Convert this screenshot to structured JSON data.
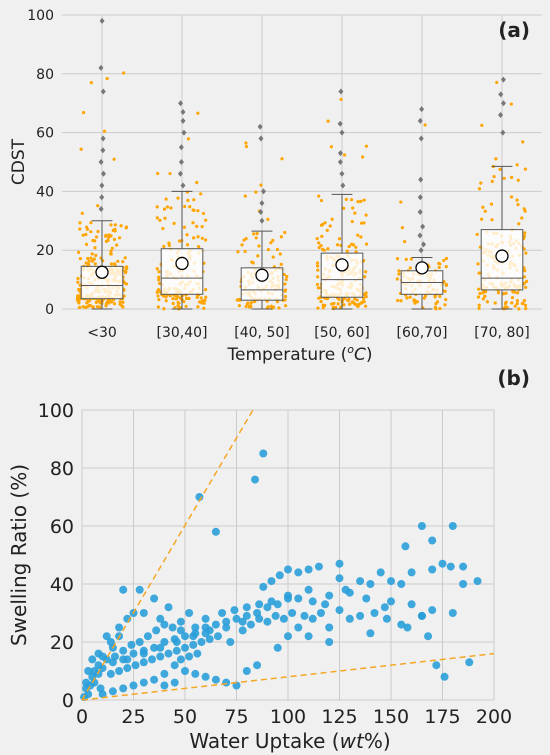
{
  "colors": {
    "background": "#f0f0f0",
    "grid": "#cbcbcb",
    "jitter": "#FFA500",
    "box_edge": "#555555",
    "box_fill": "#ffffff",
    "mean_marker_edge": "#000000",
    "flier": "#777777",
    "scatter": "#2a9fd9",
    "guide_line": "#F5A623"
  },
  "chart_data": [
    {
      "type": "box",
      "panel_label": "(a)",
      "xlabel_main": "Temperature (",
      "xlabel_unit": "o",
      "xlabel_unit2": "C",
      "xlabel_close": ")",
      "ylabel": "CDST",
      "ylim": [
        0,
        100
      ],
      "yticks": [
        0,
        20,
        40,
        60,
        80,
        100
      ],
      "grid": true,
      "categories": [
        "<30",
        "[30,40]",
        "[40, 50]",
        "[50, 60]",
        "[60,70]",
        "[70, 80]"
      ],
      "boxes": [
        {
          "whislo": 0,
          "q1": 3.5,
          "med": 8,
          "q3": 14.5,
          "whishi": 30,
          "mean": 12.5,
          "fliers": [
            34,
            38,
            42,
            46,
            50,
            54,
            58,
            74,
            82,
            98
          ]
        },
        {
          "whislo": 0,
          "q1": 5,
          "med": 10.5,
          "q3": 20.5,
          "whishi": 40,
          "mean": 15.5,
          "fliers": [
            42,
            46,
            50,
            55,
            60,
            64,
            67,
            70
          ]
        },
        {
          "whislo": 0,
          "q1": 3,
          "med": 6.5,
          "q3": 14,
          "whishi": 26.5,
          "mean": 11.5,
          "fliers": [
            30,
            33,
            36,
            40,
            58,
            62
          ]
        },
        {
          "whislo": 0,
          "q1": 4,
          "med": 10,
          "q3": 19,
          "whishi": 39,
          "mean": 15,
          "fliers": [
            42,
            46,
            50,
            53,
            60,
            63,
            74
          ]
        },
        {
          "whislo": 0,
          "q1": 5,
          "med": 9,
          "q3": 13,
          "whishi": 17.5,
          "mean": 14,
          "fliers": [
            20,
            22,
            25,
            28,
            33,
            38,
            44,
            58,
            64,
            68
          ]
        },
        {
          "whislo": 0,
          "q1": 6.5,
          "med": 10.5,
          "q3": 27,
          "whishi": 48.5,
          "mean": 18,
          "fliers": [
            60,
            66,
            70,
            73,
            78
          ]
        }
      ]
    },
    {
      "type": "scatter",
      "panel_label": "(b)",
      "xlabel_main": "Water Uptake (",
      "xlabel_unit": "wt",
      "xlabel_close": "%)",
      "ylabel": "Swelling Ratio (%)",
      "xlim": [
        0,
        200
      ],
      "ylim": [
        0,
        100
      ],
      "xticks": [
        0,
        25,
        50,
        75,
        100,
        125,
        150,
        175,
        200
      ],
      "yticks": [
        0,
        20,
        40,
        60,
        80,
        100
      ],
      "grid": true,
      "guide_lines": [
        {
          "x": [
            0,
            83
          ],
          "y": [
            0,
            100
          ]
        },
        {
          "x": [
            0,
            200
          ],
          "y": [
            0,
            16
          ]
        }
      ],
      "points": [
        [
          88,
          85
        ],
        [
          84,
          76
        ],
        [
          57,
          70
        ],
        [
          165,
          60
        ],
        [
          180,
          60
        ],
        [
          65,
          58
        ],
        [
          170,
          55
        ],
        [
          157,
          53
        ],
        [
          175,
          47
        ],
        [
          179,
          46
        ],
        [
          185,
          46
        ],
        [
          170,
          45
        ],
        [
          160,
          44
        ],
        [
          145,
          44
        ],
        [
          125,
          47
        ],
        [
          115,
          46
        ],
        [
          110,
          45
        ],
        [
          105,
          44
        ],
        [
          100,
          45
        ],
        [
          96,
          43
        ],
        [
          92,
          41
        ],
        [
          88,
          39
        ],
        [
          125,
          42
        ],
        [
          135,
          41
        ],
        [
          140,
          40
        ],
        [
          150,
          41
        ],
        [
          155,
          40
        ],
        [
          192,
          41
        ],
        [
          185,
          40
        ],
        [
          130,
          37
        ],
        [
          120,
          36
        ],
        [
          110,
          38
        ],
        [
          105,
          35
        ],
        [
          100,
          35
        ],
        [
          95,
          33
        ],
        [
          90,
          32
        ],
        [
          85,
          30
        ],
        [
          80,
          29
        ],
        [
          75,
          28
        ],
        [
          70,
          27
        ],
        [
          65,
          26
        ],
        [
          60,
          25
        ],
        [
          55,
          23
        ],
        [
          50,
          22
        ],
        [
          45,
          21
        ],
        [
          40,
          20
        ],
        [
          35,
          18
        ],
        [
          30,
          17
        ],
        [
          25,
          16
        ],
        [
          20,
          14
        ],
        [
          15,
          13
        ],
        [
          10,
          11
        ],
        [
          5,
          8
        ],
        [
          2,
          4
        ],
        [
          1,
          1
        ],
        [
          3,
          2
        ],
        [
          28,
          38
        ],
        [
          20,
          38
        ],
        [
          35,
          35
        ],
        [
          42,
          32
        ],
        [
          30,
          30
        ],
        [
          38,
          28
        ],
        [
          48,
          27
        ],
        [
          52,
          30
        ],
        [
          55,
          25
        ],
        [
          60,
          23
        ],
        [
          66,
          22
        ],
        [
          72,
          20
        ],
        [
          78,
          24
        ],
        [
          82,
          26
        ],
        [
          90,
          27
        ],
        [
          98,
          28
        ],
        [
          108,
          29
        ],
        [
          116,
          30
        ],
        [
          125,
          31
        ],
        [
          135,
          29
        ],
        [
          142,
          30
        ],
        [
          150,
          34
        ],
        [
          160,
          33
        ],
        [
          147,
          32
        ],
        [
          165,
          29
        ],
        [
          170,
          31
        ],
        [
          180,
          30
        ],
        [
          12,
          22
        ],
        [
          18,
          25
        ],
        [
          22,
          28
        ],
        [
          25,
          30
        ],
        [
          15,
          18
        ],
        [
          8,
          12
        ],
        [
          6,
          6
        ],
        [
          9,
          4
        ],
        [
          14,
          9
        ],
        [
          18,
          10
        ],
        [
          22,
          11
        ],
        [
          26,
          12
        ],
        [
          30,
          13
        ],
        [
          34,
          14
        ],
        [
          38,
          15
        ],
        [
          42,
          16
        ],
        [
          46,
          17
        ],
        [
          50,
          18
        ],
        [
          54,
          19
        ],
        [
          58,
          20
        ],
        [
          62,
          21
        ],
        [
          45,
          12
        ],
        [
          50,
          10
        ],
        [
          55,
          9
        ],
        [
          60,
          8
        ],
        [
          65,
          7
        ],
        [
          70,
          6
        ],
        [
          40,
          9
        ],
        [
          35,
          7
        ],
        [
          30,
          6
        ],
        [
          25,
          5
        ],
        [
          20,
          4
        ],
        [
          15,
          3
        ],
        [
          10,
          2
        ],
        [
          48,
          14
        ],
        [
          52,
          15
        ],
        [
          56,
          16
        ],
        [
          32,
          22
        ],
        [
          36,
          24
        ],
        [
          40,
          26
        ],
        [
          44,
          25
        ],
        [
          48,
          24
        ],
        [
          28,
          20
        ],
        [
          24,
          19
        ],
        [
          20,
          17
        ],
        [
          16,
          15
        ],
        [
          12,
          14
        ],
        [
          8,
          9
        ],
        [
          4,
          5
        ],
        [
          6,
          10
        ],
        [
          10,
          15
        ],
        [
          14,
          20
        ],
        [
          18,
          22
        ],
        [
          68,
          30
        ],
        [
          74,
          31
        ],
        [
          80,
          32
        ],
        [
          86,
          33
        ],
        [
          92,
          34
        ],
        [
          100,
          36
        ],
        [
          60,
          28
        ],
        [
          112,
          34
        ],
        [
          118,
          33
        ],
        [
          128,
          38
        ],
        [
          138,
          35
        ],
        [
          148,
          28
        ],
        [
          158,
          25
        ],
        [
          168,
          22
        ],
        [
          176,
          8
        ],
        [
          188,
          13
        ],
        [
          165,
          29
        ],
        [
          172,
          12
        ],
        [
          155,
          26
        ],
        [
          120,
          25
        ],
        [
          112,
          28
        ],
        [
          102,
          30
        ],
        [
          94,
          29
        ],
        [
          86,
          28
        ],
        [
          78,
          27
        ],
        [
          70,
          25
        ],
        [
          62,
          24
        ],
        [
          54,
          22
        ],
        [
          46,
          20
        ],
        [
          38,
          18
        ],
        [
          30,
          16
        ],
        [
          22,
          14
        ],
        [
          40,
          5
        ],
        [
          45,
          6
        ],
        [
          75,
          5
        ],
        [
          80,
          10
        ],
        [
          85,
          12
        ],
        [
          95,
          18
        ],
        [
          100,
          22
        ],
        [
          105,
          25
        ],
        [
          110,
          22
        ],
        [
          120,
          20
        ],
        [
          130,
          28
        ],
        [
          140,
          23
        ],
        [
          8,
          16
        ],
        [
          5,
          14
        ],
        [
          3,
          10
        ],
        [
          2,
          6
        ]
      ]
    }
  ],
  "axis_tick_labels_a": [
    "0",
    "20",
    "40",
    "60",
    "80",
    "100"
  ],
  "axis_tick_labels_b_y": [
    "0",
    "20",
    "40",
    "60",
    "80",
    "100"
  ],
  "axis_tick_labels_b_x": [
    "0",
    "25",
    "50",
    "75",
    "100",
    "125",
    "150",
    "175",
    "200"
  ]
}
